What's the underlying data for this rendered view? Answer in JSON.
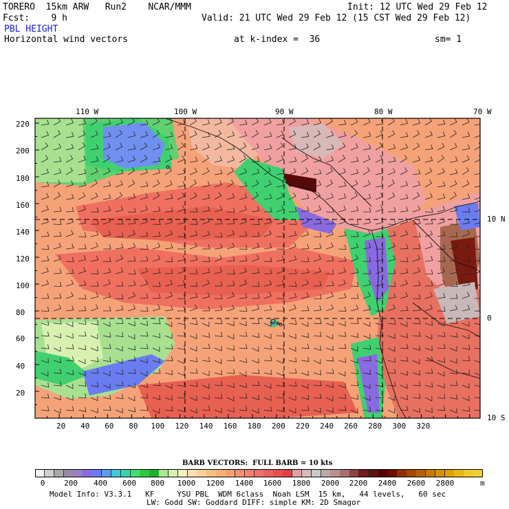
{
  "header": {
    "model": "TORERO  15km ARW   Run2    NCAR/MMM",
    "init": "Init: 12 UTC Wed 29 Feb 12",
    "fcst": "Fcst:    9 h",
    "valid": "Valid: 21 UTC Wed 29 Feb 12 (15 CST Wed 29 Feb 12)",
    "field": "PBL HEIGHT",
    "subfield": "Horizontal wind vectors",
    "kindex": "at k-index =  36",
    "smooth": "sm= 1"
  },
  "map": {
    "top_lon_labels": [
      "110 W",
      "100 W",
      "90 W",
      "80 W",
      "70 W"
    ],
    "left_y_labels": [
      "220",
      "200",
      "180",
      "160",
      "140",
      "120",
      "100",
      "80",
      "60",
      "40",
      "20"
    ],
    "bottom_x_labels": [
      "20",
      "40",
      "60",
      "80",
      "100",
      "120",
      "140",
      "160",
      "180",
      "200",
      "220",
      "240",
      "260",
      "280",
      "300",
      "320"
    ],
    "right_lat_labels": [
      "10 N",
      "0",
      "10 S"
    ]
  },
  "legend": {
    "barb_note": "BARB VECTORS:  FULL BARB = 10 kts",
    "unit": "m",
    "labels": [
      "0",
      "200",
      "400",
      "600",
      "800",
      "1000",
      "1200",
      "1400",
      "1600",
      "1800",
      "2000",
      "2200",
      "2400",
      "2600",
      "2800"
    ],
    "colors": [
      "#f4f4f4",
      "#d0d0d0",
      "#a8a8a8",
      "#9a8aa6",
      "#9c7cc4",
      "#8a6ae0",
      "#6a7cf0",
      "#5c9cf0",
      "#40c8d8",
      "#30d8a8",
      "#40e070",
      "#30c840",
      "#20b028",
      "#a8e890",
      "#d8f0b0",
      "#f4f0c0",
      "#f8e0b0",
      "#f8d098",
      "#f8c080",
      "#f8b070",
      "#f8a070",
      "#f89070",
      "#f88070",
      "#f07070",
      "#e86060",
      "#e85050",
      "#e04040",
      "#e0a0a0",
      "#d8b8b8",
      "#c8c8c8",
      "#c0a8a8",
      "#b89090",
      "#a87070",
      "#904040",
      "#781818",
      "#601010",
      "#580000",
      "#700800",
      "#903000",
      "#a84800",
      "#b86000",
      "#c87800",
      "#d89000",
      "#e0a000",
      "#e8b818",
      "#f0c828",
      "#f0d038"
    ]
  },
  "footer": {
    "line1": "Model Info: V3.3.1   KF     YSU PBL  WDM 6class  Noah LSM  15 km,   44 levels,   60 sec",
    "line2": "LW: Godd SW: Goddard DIFF: simple KM: 2D Smagor"
  }
}
